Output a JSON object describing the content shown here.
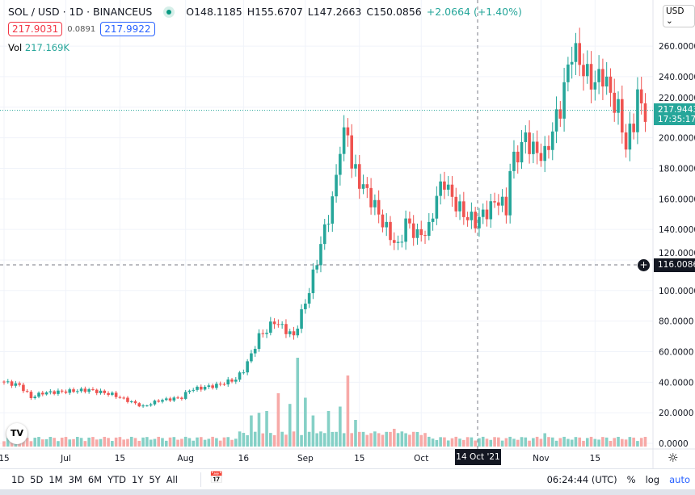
{
  "header": {
    "symbol": "SOL / USD · 1D · BINANCEUS",
    "open": "O148.1185",
    "high": "H155.6707",
    "low": "L147.2663",
    "close": "C150.0856",
    "change": "+2.0664 (+1.40%)",
    "bid": "217.9031",
    "spread": "0.0891",
    "ask": "217.9922",
    "vol_label": "Vol",
    "vol_value": "217.169K"
  },
  "currency_button": "USD",
  "last_price_label": "217.9443",
  "countdown": "17:35:17",
  "crosshair_price": "116.0086",
  "crosshair_date": "14 Oct '21",
  "colors": {
    "up": "#26a69a",
    "down": "#ef5350",
    "up_vol": "#85d0c6",
    "down_vol": "#f7a9a7"
  },
  "bottom": {
    "ranges": [
      "1D",
      "5D",
      "1M",
      "3M",
      "6M",
      "YTD",
      "1Y",
      "5Y",
      "All"
    ],
    "clock": "06:24:44 (UTC)",
    "percent": "%",
    "log": "log",
    "auto": "auto"
  },
  "chart_data": {
    "type": "candlestick",
    "title": "SOL / USD · 1D · BINANCEUS",
    "ylim": [
      0,
      270
    ],
    "y_ticks": [
      "0.0000",
      "20.0000",
      "40.0000",
      "60.0000",
      "80.0000",
      "100.0000",
      "120.0000",
      "140.0000",
      "160.0000",
      "180.0000",
      "200.0000",
      "220.0000",
      "240.0000",
      "260.0000"
    ],
    "x_ticks": [
      {
        "label": "15",
        "day": 0
      },
      {
        "label": "Jul",
        "day": 16
      },
      {
        "label": "15",
        "day": 30
      },
      {
        "label": "Aug",
        "day": 47
      },
      {
        "label": "16",
        "day": 62
      },
      {
        "label": "Sep",
        "day": 78
      },
      {
        "label": "15",
        "day": 92
      },
      {
        "label": "Oct",
        "day": 108
      },
      {
        "label": "Nov",
        "day": 139
      },
      {
        "label": "15",
        "day": 153
      }
    ],
    "close_anchors": [
      [
        0,
        40
      ],
      [
        4,
        38
      ],
      [
        7,
        30
      ],
      [
        10,
        33
      ],
      [
        16,
        34
      ],
      [
        22,
        35
      ],
      [
        28,
        32
      ],
      [
        33,
        27
      ],
      [
        36,
        24
      ],
      [
        40,
        28
      ],
      [
        46,
        30
      ],
      [
        48,
        35
      ],
      [
        55,
        38
      ],
      [
        60,
        42
      ],
      [
        62,
        48
      ],
      [
        64,
        58
      ],
      [
        66,
        70
      ],
      [
        68,
        74
      ],
      [
        70,
        80
      ],
      [
        72,
        76
      ],
      [
        75,
        70
      ],
      [
        77,
        85
      ],
      [
        79,
        100
      ],
      [
        81,
        120
      ],
      [
        83,
        140
      ],
      [
        85,
        158
      ],
      [
        86,
        175
      ],
      [
        87,
        195
      ],
      [
        89,
        205
      ],
      [
        90,
        182
      ],
      [
        92,
        172
      ],
      [
        95,
        160
      ],
      [
        97,
        150
      ],
      [
        99,
        140
      ],
      [
        102,
        128
      ],
      [
        104,
        145
      ],
      [
        107,
        136
      ],
      [
        110,
        140
      ],
      [
        112,
        162
      ],
      [
        114,
        172
      ],
      [
        116,
        160
      ],
      [
        119,
        150
      ],
      [
        122,
        145
      ],
      [
        125,
        152
      ],
      [
        128,
        160
      ],
      [
        130,
        152
      ],
      [
        131,
        180
      ],
      [
        133,
        190
      ],
      [
        135,
        200
      ],
      [
        137,
        192
      ],
      [
        140,
        188
      ],
      [
        142,
        205
      ],
      [
        144,
        220
      ],
      [
        146,
        245
      ],
      [
        147,
        258
      ],
      [
        149,
        250
      ],
      [
        151,
        240
      ],
      [
        153,
        236
      ],
      [
        155,
        242
      ],
      [
        157,
        228
      ],
      [
        159,
        218
      ],
      [
        161,
        195
      ],
      [
        163,
        210
      ],
      [
        164,
        230
      ],
      [
        165,
        218
      ],
      [
        166,
        218
      ]
    ],
    "volume_spikes": [
      [
        64,
        35
      ],
      [
        66,
        38
      ],
      [
        68,
        40
      ],
      [
        71,
        60
      ],
      [
        74,
        48
      ],
      [
        76,
        100
      ],
      [
        78,
        55
      ],
      [
        80,
        35
      ],
      [
        84,
        40
      ],
      [
        87,
        45
      ],
      [
        89,
        80
      ],
      [
        91,
        30
      ],
      [
        101,
        20
      ],
      [
        140,
        15
      ]
    ]
  }
}
